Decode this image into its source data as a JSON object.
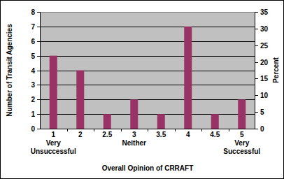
{
  "chart_data": {
    "type": "bar",
    "categories": [
      "1\nVery\nUnsuccessful",
      "2",
      "2.5",
      "3\nNeither",
      "3.5",
      "4",
      "4.5",
      "5\nVery\nSuccessful"
    ],
    "values": [
      5,
      4,
      1,
      2,
      1,
      7,
      1,
      2
    ],
    "color": "#993366",
    "x_label": "Overall Opinion of CRRAFT",
    "y_label": "Number of Transit Agencies",
    "y2_label": "Percent",
    "ylim": [
      0,
      8
    ],
    "yticks": [
      0,
      1,
      2,
      3,
      4,
      5,
      6,
      7,
      8
    ],
    "y2lim": [
      0,
      35
    ],
    "y2ticks": [
      0,
      5,
      10,
      15,
      20,
      25,
      30,
      35
    ],
    "grid": true
  }
}
